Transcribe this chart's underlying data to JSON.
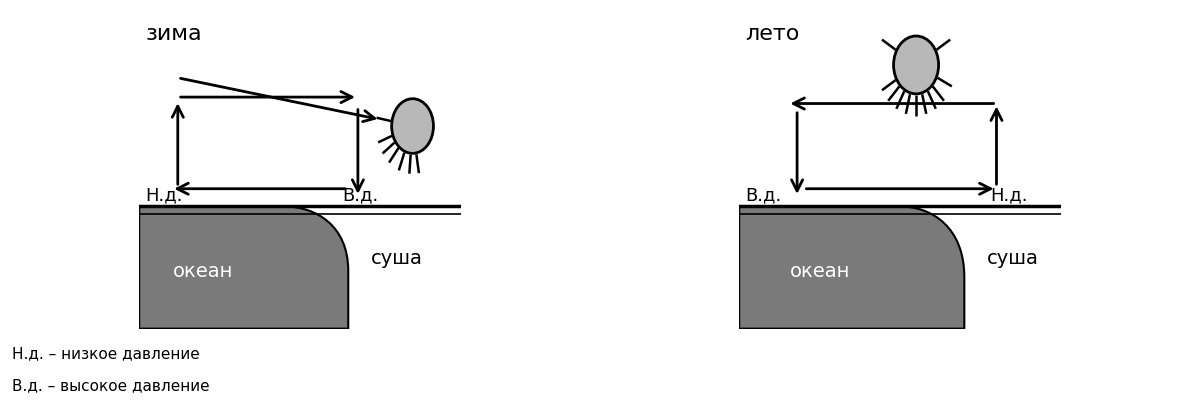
{
  "title_left": "зима",
  "title_right": "лето",
  "ocean_label": "океан",
  "land_label": "суша",
  "nd_label": "Н.д.",
  "vd_label": "В.д.",
  "legend1": "Н.д. – низкое давление",
  "legend2": "В.д. – высокое давление",
  "ocean_color": "#7a7a7a",
  "sun_color": "#b8b8b8",
  "bg_color": "#ffffff",
  "line_color": "#000000"
}
